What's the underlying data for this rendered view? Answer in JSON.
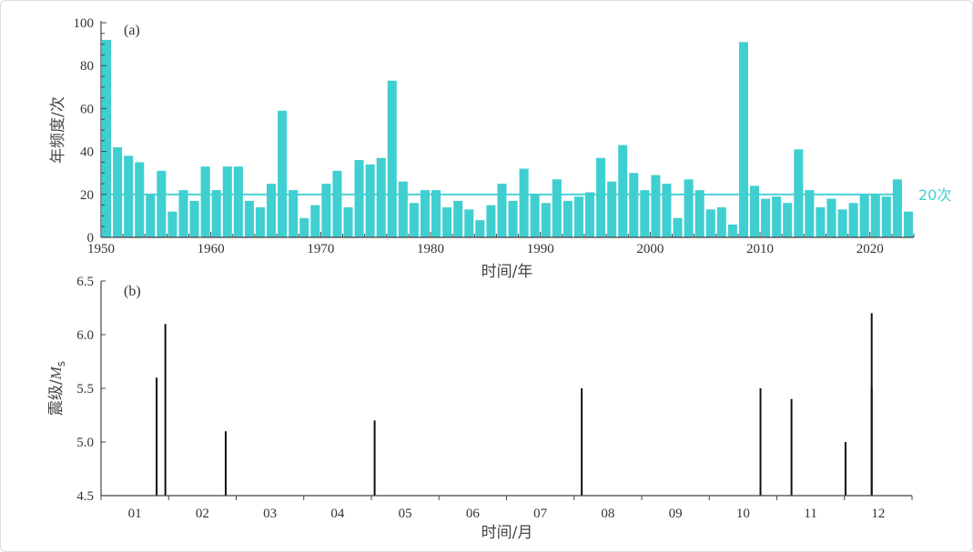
{
  "chart_data": [
    {
      "type": "bar",
      "panel_label": "(a)",
      "xlabel": "时间/年",
      "ylabel": "年频度/次",
      "xlim": [
        1950,
        2024
      ],
      "ylim": [
        0,
        100
      ],
      "xticks": [
        1950,
        1960,
        1970,
        1980,
        1990,
        2000,
        2010,
        2020
      ],
      "yticks": [
        0,
        20,
        40,
        60,
        80,
        100
      ],
      "bar_color": "#40CFD0",
      "reference_line": {
        "value": 20,
        "label": "20次",
        "color": "#40CFD0"
      },
      "categories": [
        1950,
        1951,
        1952,
        1953,
        1954,
        1955,
        1956,
        1957,
        1958,
        1959,
        1960,
        1961,
        1962,
        1963,
        1964,
        1965,
        1966,
        1967,
        1968,
        1969,
        1970,
        1971,
        1972,
        1973,
        1974,
        1975,
        1976,
        1977,
        1978,
        1979,
        1980,
        1981,
        1982,
        1983,
        1984,
        1985,
        1986,
        1987,
        1988,
        1989,
        1990,
        1991,
        1992,
        1993,
        1994,
        1995,
        1996,
        1997,
        1998,
        1999,
        2000,
        2001,
        2002,
        2003,
        2004,
        2005,
        2006,
        2007,
        2008,
        2009,
        2010,
        2011,
        2012,
        2013,
        2014,
        2015,
        2016,
        2017,
        2018,
        2019,
        2020,
        2021,
        2022,
        2023
      ],
      "values": [
        92,
        42,
        38,
        35,
        20,
        31,
        12,
        22,
        17,
        33,
        22,
        33,
        33,
        17,
        14,
        25,
        59,
        22,
        9,
        15,
        25,
        31,
        14,
        36,
        34,
        37,
        73,
        26,
        16,
        22,
        22,
        14,
        17,
        13,
        8,
        15,
        25,
        17,
        32,
        20,
        16,
        27,
        17,
        19,
        21,
        37,
        26,
        43,
        30,
        22,
        29,
        25,
        9,
        27,
        22,
        13,
        14,
        6,
        91,
        24,
        18,
        19,
        16,
        41,
        22,
        14,
        18,
        13,
        16,
        20,
        20,
        19,
        27,
        12
      ]
    },
    {
      "type": "bar",
      "subtype": "stem",
      "panel_label": "(b)",
      "xlabel": "时间/月",
      "ylabel_main": "震级/",
      "ylabel_symbol": "M",
      "ylabel_sub": "s",
      "ylim": [
        4.5,
        6.5
      ],
      "yticks": [
        "4.5",
        "5.0",
        "5.5",
        "6.0",
        "6.5"
      ],
      "xticks": [
        "01",
        "02",
        "03",
        "04",
        "05",
        "06",
        "07",
        "08",
        "09",
        "10",
        "11",
        "12"
      ],
      "stem_color": "#111111",
      "events": [
        {
          "month": 1,
          "day": 26,
          "magnitude": 5.6
        },
        {
          "month": 1,
          "day": 30,
          "magnitude": 6.1
        },
        {
          "month": 2,
          "day": 25,
          "magnitude": 5.1
        },
        {
          "month": 5,
          "day": 2,
          "magnitude": 5.2
        },
        {
          "month": 8,
          "day": 4,
          "magnitude": 5.5
        },
        {
          "month": 10,
          "day": 24,
          "magnitude": 5.5
        },
        {
          "month": 11,
          "day": 7,
          "magnitude": 5.4
        },
        {
          "month": 12,
          "day": 1,
          "magnitude": 5.0
        },
        {
          "month": 12,
          "day": 13,
          "magnitude": 6.2
        },
        {
          "month": 12,
          "day": 13,
          "magnitude": 5.5
        }
      ]
    }
  ]
}
